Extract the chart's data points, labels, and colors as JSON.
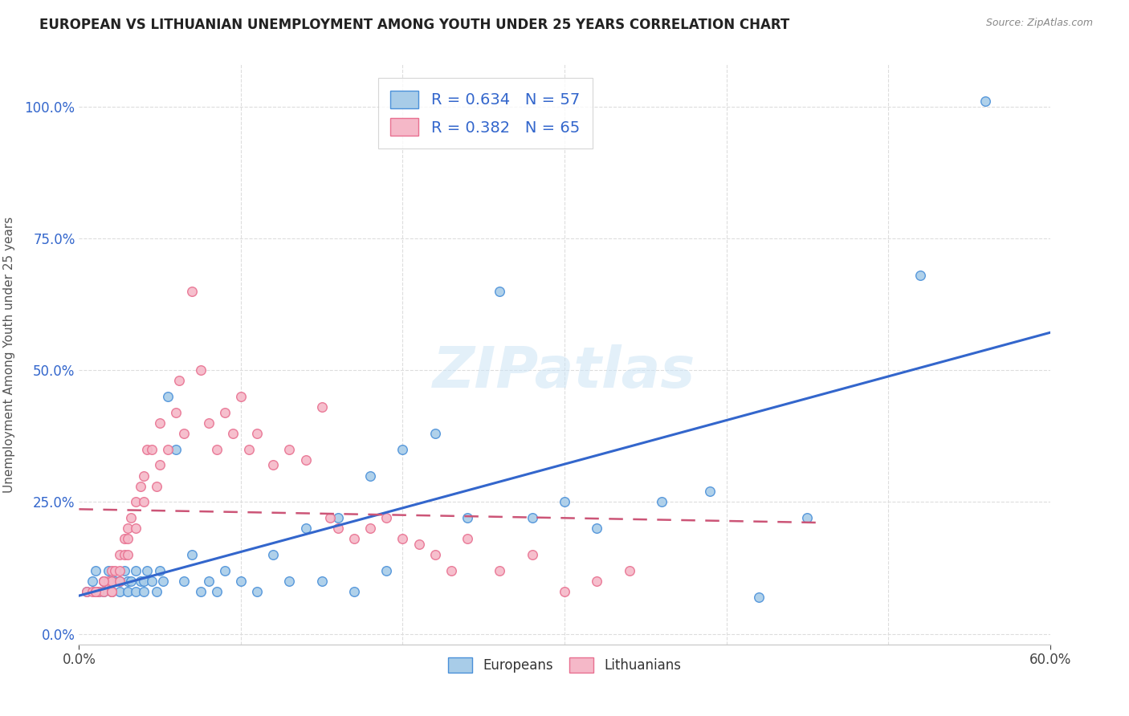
{
  "title": "EUROPEAN VS LITHUANIAN UNEMPLOYMENT AMONG YOUTH UNDER 25 YEARS CORRELATION CHART",
  "source": "Source: ZipAtlas.com",
  "ylabel": "Unemployment Among Youth under 25 years",
  "ytick_values": [
    0.0,
    0.25,
    0.5,
    0.75,
    1.0
  ],
  "ytick_labels": [
    "0.0%",
    "25.0%",
    "50.0%",
    "75.0%",
    "100.0%"
  ],
  "xlim": [
    0.0,
    0.6
  ],
  "ylim": [
    -0.02,
    1.08
  ],
  "watermark": "ZIPatlas",
  "legend_R_blue": "R = 0.634",
  "legend_N_blue": "N = 57",
  "legend_R_pink": "R = 0.382",
  "legend_N_pink": "N = 65",
  "legend_bottom_label1": "Europeans",
  "legend_bottom_label2": "Lithuanians",
  "blue_fill": "#a8cce8",
  "pink_fill": "#f5b8c8",
  "blue_edge": "#4a90d9",
  "pink_edge": "#e87090",
  "blue_line": "#3366cc",
  "pink_line": "#cc5577",
  "title_fontsize": 12,
  "source_fontsize": 9,
  "europeans_x": [
    0.005,
    0.008,
    0.01,
    0.012,
    0.015,
    0.015,
    0.018,
    0.02,
    0.02,
    0.022,
    0.025,
    0.025,
    0.028,
    0.03,
    0.03,
    0.032,
    0.035,
    0.035,
    0.038,
    0.04,
    0.04,
    0.042,
    0.045,
    0.048,
    0.05,
    0.052,
    0.055,
    0.06,
    0.065,
    0.07,
    0.075,
    0.08,
    0.085,
    0.09,
    0.1,
    0.11,
    0.12,
    0.13,
    0.14,
    0.15,
    0.16,
    0.17,
    0.18,
    0.19,
    0.2,
    0.22,
    0.24,
    0.26,
    0.28,
    0.3,
    0.32,
    0.36,
    0.39,
    0.42,
    0.45,
    0.52,
    0.56
  ],
  "europeans_y": [
    0.08,
    0.1,
    0.12,
    0.08,
    0.1,
    0.08,
    0.12,
    0.1,
    0.08,
    0.1,
    0.1,
    0.08,
    0.12,
    0.08,
    0.1,
    0.1,
    0.08,
    0.12,
    0.1,
    0.1,
    0.08,
    0.12,
    0.1,
    0.08,
    0.12,
    0.1,
    0.45,
    0.35,
    0.1,
    0.15,
    0.08,
    0.1,
    0.08,
    0.12,
    0.1,
    0.08,
    0.15,
    0.1,
    0.2,
    0.1,
    0.22,
    0.08,
    0.3,
    0.12,
    0.35,
    0.38,
    0.22,
    0.65,
    0.22,
    0.25,
    0.2,
    0.25,
    0.27,
    0.07,
    0.22,
    0.68,
    1.01
  ],
  "lithuanians_x": [
    0.005,
    0.008,
    0.01,
    0.012,
    0.015,
    0.015,
    0.018,
    0.02,
    0.02,
    0.02,
    0.022,
    0.025,
    0.025,
    0.025,
    0.028,
    0.028,
    0.03,
    0.03,
    0.03,
    0.032,
    0.035,
    0.035,
    0.038,
    0.04,
    0.04,
    0.042,
    0.045,
    0.048,
    0.05,
    0.05,
    0.055,
    0.06,
    0.062,
    0.065,
    0.07,
    0.075,
    0.08,
    0.085,
    0.09,
    0.095,
    0.1,
    0.105,
    0.11,
    0.12,
    0.13,
    0.14,
    0.15,
    0.155,
    0.16,
    0.17,
    0.18,
    0.19,
    0.2,
    0.21,
    0.22,
    0.23,
    0.24,
    0.26,
    0.28,
    0.3,
    0.32,
    0.34,
    0.01,
    0.015,
    0.02
  ],
  "lithuanians_y": [
    0.08,
    0.08,
    0.08,
    0.08,
    0.1,
    0.08,
    0.1,
    0.12,
    0.1,
    0.08,
    0.12,
    0.15,
    0.12,
    0.1,
    0.18,
    0.15,
    0.2,
    0.18,
    0.15,
    0.22,
    0.25,
    0.2,
    0.28,
    0.3,
    0.25,
    0.35,
    0.35,
    0.28,
    0.4,
    0.32,
    0.35,
    0.42,
    0.48,
    0.38,
    0.65,
    0.5,
    0.4,
    0.35,
    0.42,
    0.38,
    0.45,
    0.35,
    0.38,
    0.32,
    0.35,
    0.33,
    0.43,
    0.22,
    0.2,
    0.18,
    0.2,
    0.22,
    0.18,
    0.17,
    0.15,
    0.12,
    0.18,
    0.12,
    0.15,
    0.08,
    0.1,
    0.12,
    0.08,
    0.1,
    0.08
  ]
}
